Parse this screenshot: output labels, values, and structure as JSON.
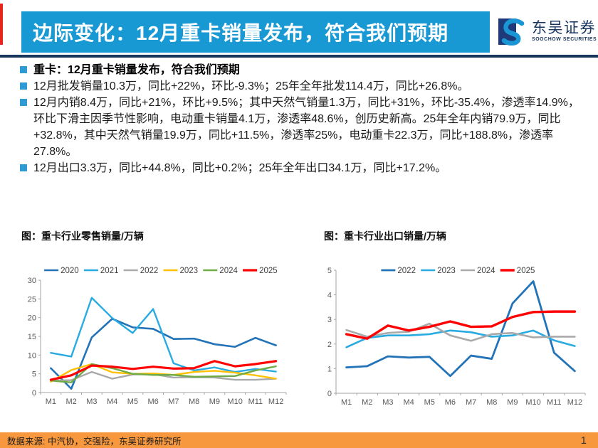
{
  "header": {
    "title": "边际变化：12月重卡销量发布，符合我们预期",
    "brand_cn": "东吴证券",
    "brand_en": "SOOCHOW SECURITIES",
    "banner_color": "#1899D4",
    "rule_color": "#17365D",
    "accent_stripe_color": "#E8251C",
    "brand_navy": "#17355E",
    "brand_light_blue": "#1B96D5"
  },
  "bullets": [
    {
      "text": "重卡：12月重卡销量发布，符合我们预期"
    },
    {
      "text": "12月批发销量10.3万，同比+22%，环比-9.3%；25年全年批发114.4万，同比+26.8%。"
    },
    {
      "text": "12月内销8.4万，同比+21%，环比+9.5%；其中天然气销量1.3万，同比+31%，环比-35.4%，渗透率14.9%，环比下滑主因季节性影响，电动重卡销量4.1万，渗透率48.6%，创历史新高。25年全年内销79.9万，同比+32.8%，其中天然气销量19.9万，同比+11.5%，渗透率25%，电动重卡22.3万，同比+188.8%，渗透率27.8%。"
    },
    {
      "text": "12月出口3.3万，同比+44.8%，同比+0.2%；25年全年出口34.1万，同比+17.2%。"
    }
  ],
  "chart_data": [
    {
      "type": "line",
      "title": "图：重卡行业零售销量/万辆",
      "categories": [
        "M1",
        "M2",
        "M3",
        "M4",
        "M5",
        "M6",
        "M7",
        "M8",
        "M9",
        "M10",
        "M11",
        "M12"
      ],
      "ylim": [
        0,
        30
      ],
      "ytick": 5,
      "grid": false,
      "legend_position": "top",
      "series": [
        {
          "name": "2020",
          "color": "#2273B8",
          "lw": 2.6,
          "values": [
            6.5,
            1.0,
            14.7,
            19.7,
            17.4,
            17.0,
            14.3,
            14.4,
            12.9,
            12.2,
            14.6,
            12.6
          ]
        },
        {
          "name": "2021",
          "color": "#29ABE2",
          "lw": 2.4,
          "values": [
            10.6,
            9.6,
            25.3,
            19.9,
            15.9,
            22.3,
            7.8,
            5.9,
            6.7,
            5.5,
            6.3,
            5.6
          ]
        },
        {
          "name": "2022",
          "color": "#A9A9A9",
          "lw": 2.4,
          "values": [
            3.2,
            3.3,
            5.5,
            3.7,
            4.8,
            4.9,
            4.0,
            4.1,
            4.0,
            3.4,
            3.4,
            3.7
          ]
        },
        {
          "name": "2023",
          "color": "#FFC000",
          "lw": 2.4,
          "values": [
            2.9,
            6.0,
            7.6,
            5.4,
            5.0,
            5.1,
            4.7,
            5.5,
            5.8,
            5.3,
            4.6,
            3.7
          ]
        },
        {
          "name": "2024",
          "color": "#6FAC46",
          "lw": 2.4,
          "values": [
            3.2,
            2.7,
            7.6,
            6.5,
            5.0,
            4.7,
            4.7,
            4.2,
            4.3,
            4.4,
            5.9,
            7.0
          ]
        },
        {
          "name": "2025",
          "color": "#FF0000",
          "lw": 3.2,
          "values": [
            3.4,
            4.6,
            7.2,
            6.9,
            6.3,
            6.9,
            6.4,
            6.5,
            8.4,
            7.0,
            7.6,
            8.4
          ]
        }
      ]
    },
    {
      "type": "line",
      "title": "图：重卡行业出口销量/万辆",
      "categories": [
        "M1",
        "M2",
        "M3",
        "M4",
        "M5",
        "M6",
        "M7",
        "M8",
        "M9",
        "M10",
        "M11",
        "M12"
      ],
      "ylim": [
        0,
        5
      ],
      "ytick": 1,
      "grid": false,
      "legend_position": "top",
      "series": [
        {
          "name": "2022",
          "color": "#2273B8",
          "lw": 2.8,
          "values": [
            1.05,
            1.1,
            1.5,
            1.45,
            1.48,
            0.7,
            1.53,
            1.4,
            3.65,
            4.55,
            1.65,
            0.9
          ]
        },
        {
          "name": "2023",
          "color": "#29ABE2",
          "lw": 2.6,
          "values": [
            1.87,
            2.25,
            2.35,
            2.35,
            2.4,
            2.55,
            2.48,
            2.3,
            2.35,
            2.55,
            2.15,
            1.92
          ]
        },
        {
          "name": "2024",
          "color": "#A9A9A9",
          "lw": 2.6,
          "values": [
            2.57,
            2.3,
            2.45,
            2.5,
            2.83,
            2.35,
            2.13,
            2.4,
            2.45,
            2.27,
            2.3,
            2.3
          ]
        },
        {
          "name": "2025",
          "color": "#FF0000",
          "lw": 3.4,
          "values": [
            2.4,
            2.22,
            2.75,
            2.55,
            2.7,
            2.92,
            2.7,
            2.72,
            3.1,
            3.3,
            3.32,
            3.32
          ]
        }
      ]
    }
  ],
  "footer": {
    "source": "数据来源: 中汽协，交强险，东吴证券研究所",
    "page": "1",
    "bar_color": "#F7983F"
  }
}
